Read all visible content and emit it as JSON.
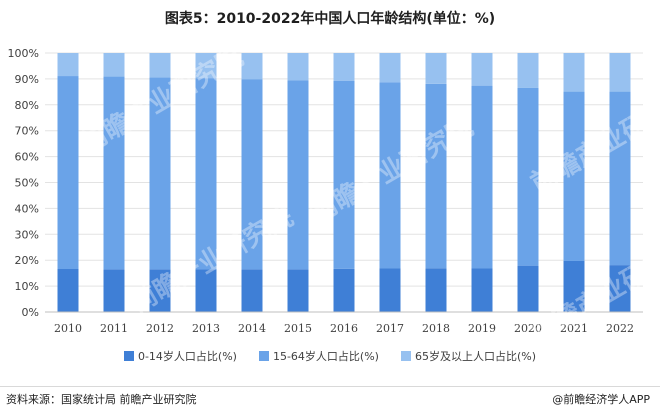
{
  "title": "图表5：2010-2022年中国人口年龄结构(单位：%)",
  "chart_data": {
    "type": "bar",
    "stacked": true,
    "categories": [
      "2010",
      "2011",
      "2012",
      "2013",
      "2014",
      "2015",
      "2016",
      "2017",
      "2018",
      "2019",
      "2020",
      "2021",
      "2022"
    ],
    "series": [
      {
        "name": "0-14岁人口占比(%)",
        "color": "#3f7fd6",
        "values": [
          16.6,
          16.5,
          16.5,
          16.4,
          16.5,
          16.5,
          16.7,
          16.8,
          16.9,
          16.8,
          17.9,
          19.7,
          18.1
        ]
      },
      {
        "name": "15-64岁人口占比(%)",
        "color": "#6aa3e8",
        "values": [
          74.5,
          74.4,
          74.1,
          73.9,
          73.4,
          73.0,
          72.5,
          71.8,
          71.2,
          70.6,
          68.6,
          65.4,
          67.0
        ]
      },
      {
        "name": "65岁及以上人口占比(%)",
        "color": "#97c1f0",
        "values": [
          8.9,
          9.1,
          9.4,
          9.7,
          10.1,
          10.5,
          10.8,
          11.4,
          11.9,
          12.6,
          13.5,
          14.9,
          14.9
        ]
      }
    ],
    "y_ticks": [
      "0%",
      "10%",
      "20%",
      "30%",
      "40%",
      "50%",
      "60%",
      "70%",
      "80%",
      "90%",
      "100%"
    ],
    "ylim": [
      0,
      100
    ],
    "xlabel": "",
    "ylabel": "",
    "legend_position": "bottom"
  },
  "watermark": "前瞻产业研究院",
  "source": "资料来源：国家统计局 前瞻产业研究院",
  "brand": "@前瞻经济学人APP"
}
